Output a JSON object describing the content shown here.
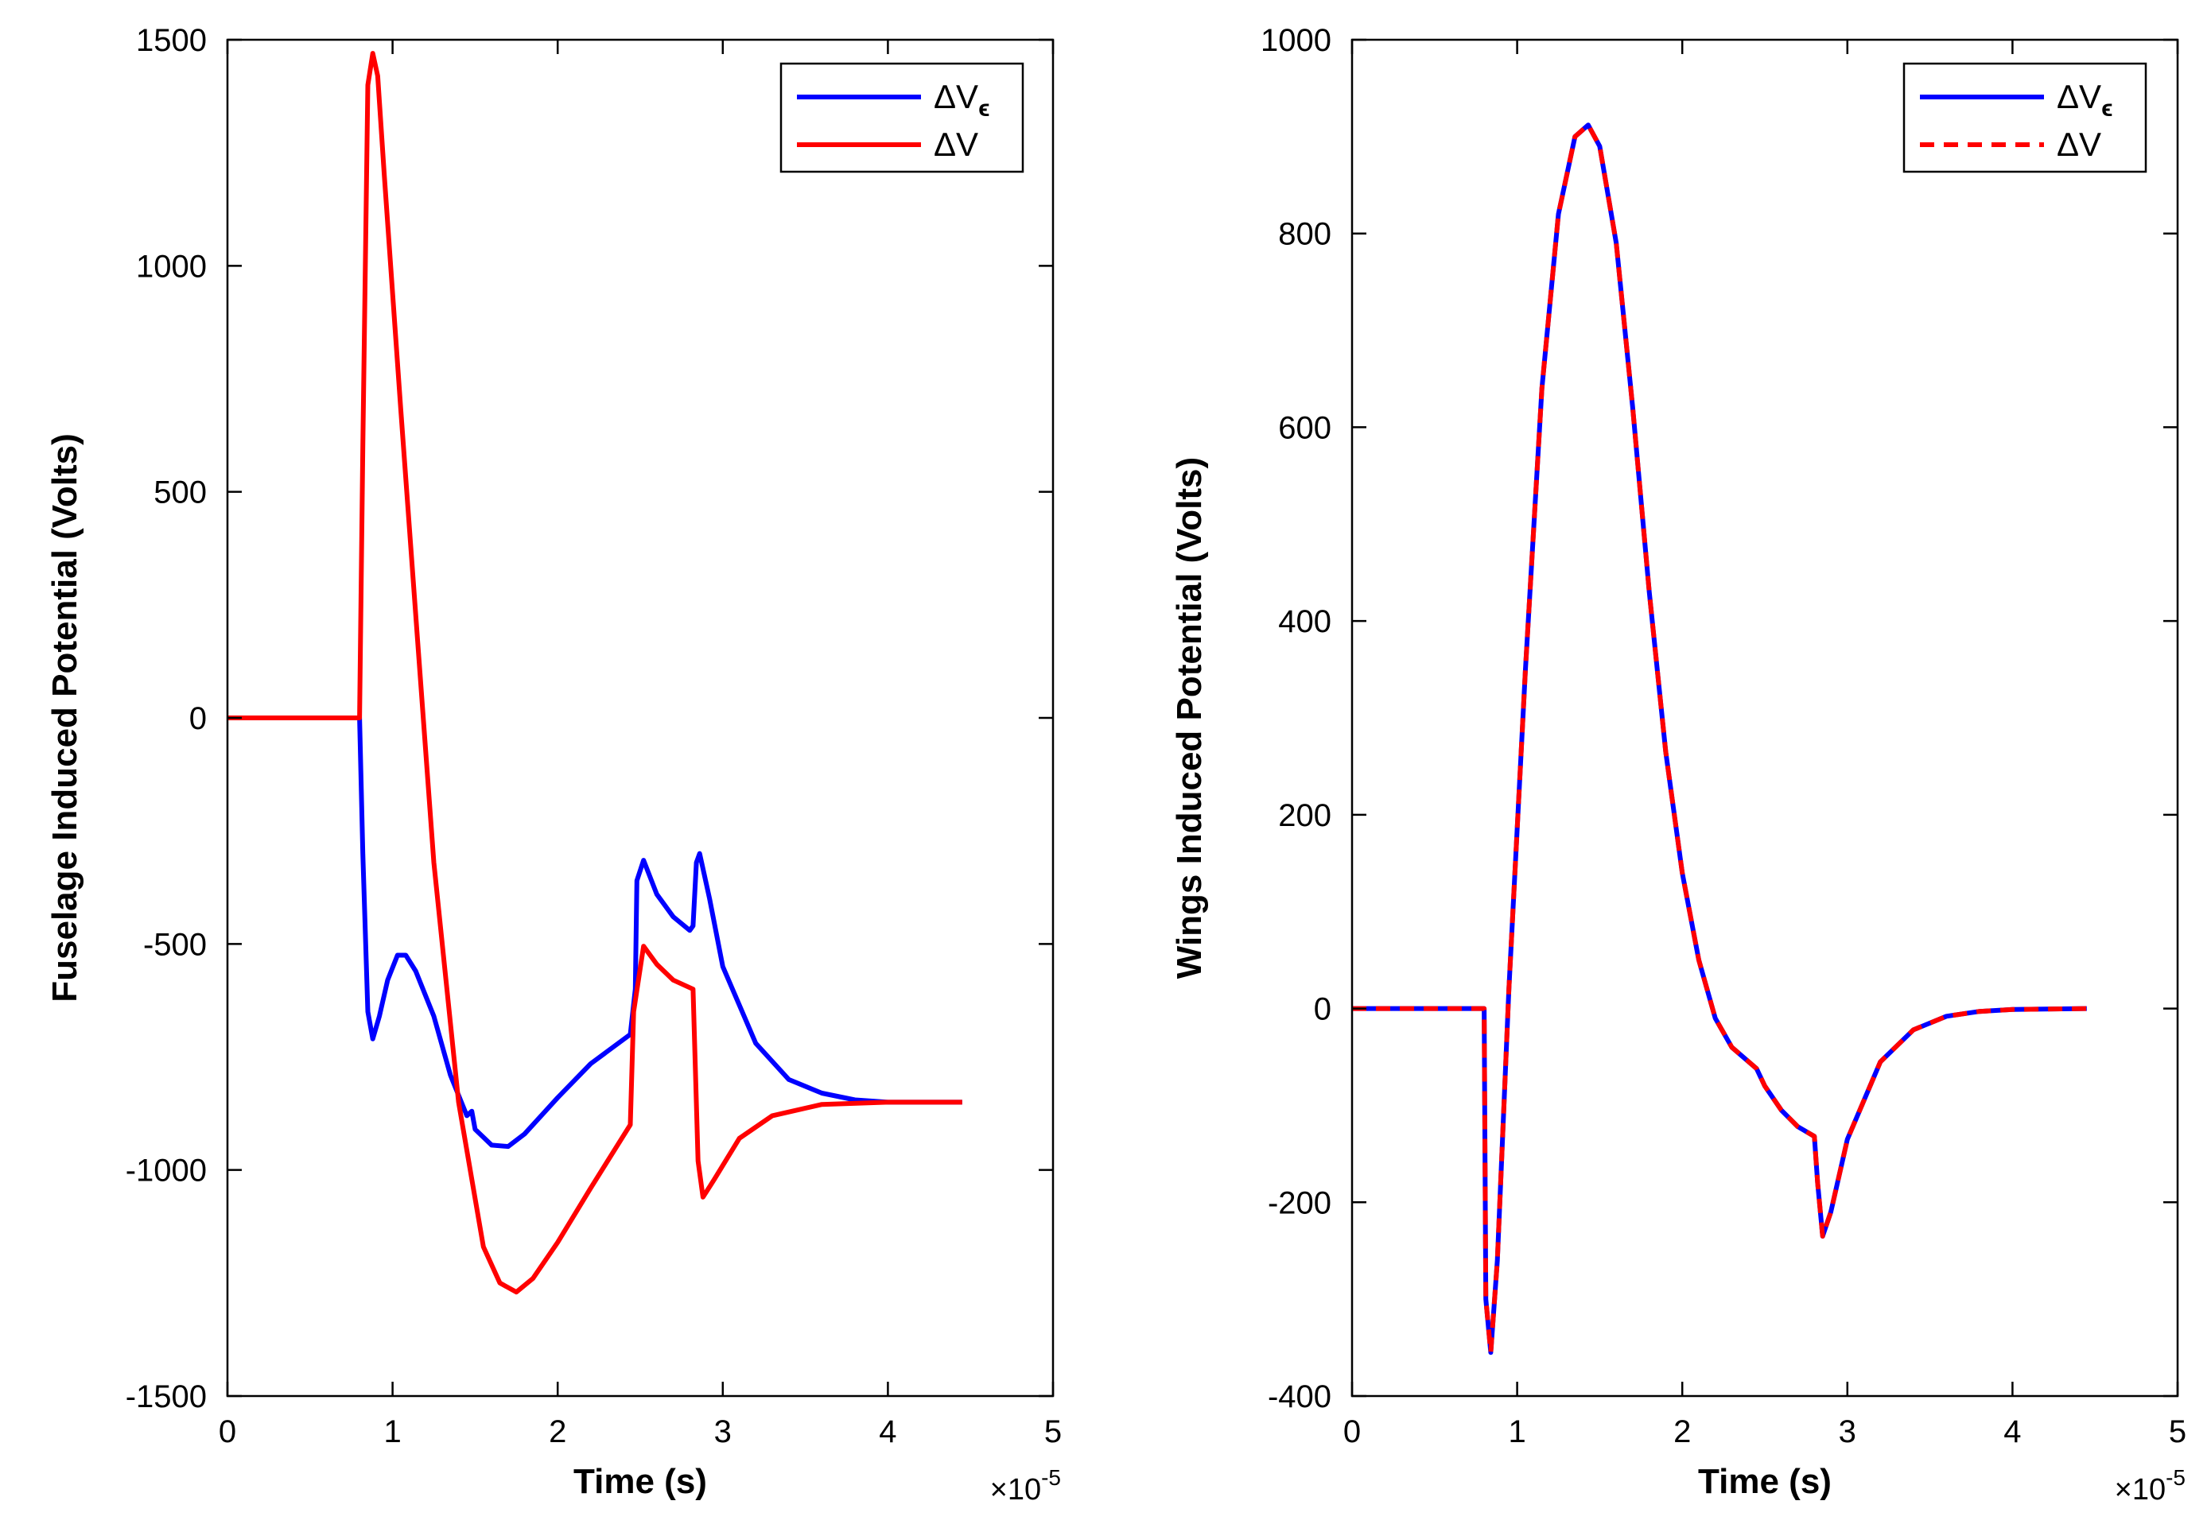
{
  "chart_data": [
    {
      "type": "line",
      "title": "",
      "xlabel": "Time  (s)",
      "ylabel": "Fuselage Induced Potential  (Volts)",
      "x_exponent_label": "×10",
      "x_exponent_power": "-5",
      "xlim": [
        0,
        5
      ],
      "ylim": [
        -1500,
        1500
      ],
      "xticks": [
        "0",
        "1",
        "2",
        "3",
        "4",
        "5"
      ],
      "yticks": [
        "1500",
        "1000",
        "500",
        "0",
        "-500",
        "-1000",
        "-1500"
      ],
      "legend": {
        "position": "top-right",
        "entries": [
          "ΔV",
          "ΔV"
        ],
        "subscripts": [
          "ϵ",
          ""
        ]
      },
      "series": [
        {
          "name": "ΔVϵ",
          "color": "#0000ff",
          "style": "solid",
          "points": [
            [
              0,
              0
            ],
            [
              0.8,
              0
            ],
            [
              0.82,
              -300
            ],
            [
              0.85,
              -650
            ],
            [
              0.88,
              -710
            ],
            [
              0.92,
              -660
            ],
            [
              0.97,
              -580
            ],
            [
              1.03,
              -525
            ],
            [
              1.08,
              -525
            ],
            [
              1.14,
              -560
            ],
            [
              1.25,
              -660
            ],
            [
              1.35,
              -790
            ],
            [
              1.45,
              -880
            ],
            [
              1.48,
              -870
            ],
            [
              1.5,
              -910
            ],
            [
              1.6,
              -945
            ],
            [
              1.7,
              -948
            ],
            [
              1.8,
              -920
            ],
            [
              2.0,
              -840
            ],
            [
              2.2,
              -765
            ],
            [
              2.44,
              -700
            ],
            [
              2.47,
              -600
            ],
            [
              2.48,
              -360
            ],
            [
              2.52,
              -315
            ],
            [
              2.6,
              -390
            ],
            [
              2.7,
              -440
            ],
            [
              2.8,
              -470
            ],
            [
              2.82,
              -460
            ],
            [
              2.84,
              -320
            ],
            [
              2.86,
              -300
            ],
            [
              2.92,
              -400
            ],
            [
              3.0,
              -550
            ],
            [
              3.2,
              -720
            ],
            [
              3.4,
              -800
            ],
            [
              3.6,
              -830
            ],
            [
              3.8,
              -845
            ],
            [
              4.0,
              -850
            ],
            [
              4.45,
              -850
            ]
          ]
        },
        {
          "name": "ΔV",
          "color": "#ff0000",
          "style": "solid",
          "points": [
            [
              0,
              0
            ],
            [
              0.8,
              0
            ],
            [
              0.82,
              600
            ],
            [
              0.85,
              1400
            ],
            [
              0.88,
              1470
            ],
            [
              0.91,
              1420
            ],
            [
              0.95,
              1200
            ],
            [
              1.05,
              680
            ],
            [
              1.15,
              180
            ],
            [
              1.25,
              -320
            ],
            [
              1.4,
              -850
            ],
            [
              1.55,
              -1170
            ],
            [
              1.65,
              -1250
            ],
            [
              1.75,
              -1270
            ],
            [
              1.85,
              -1240
            ],
            [
              2.0,
              -1160
            ],
            [
              2.2,
              -1040
            ],
            [
              2.44,
              -900
            ],
            [
              2.46,
              -650
            ],
            [
              2.52,
              -505
            ],
            [
              2.6,
              -545
            ],
            [
              2.7,
              -580
            ],
            [
              2.82,
              -600
            ],
            [
              2.85,
              -980
            ],
            [
              2.88,
              -1060
            ],
            [
              2.95,
              -1020
            ],
            [
              3.1,
              -930
            ],
            [
              3.3,
              -880
            ],
            [
              3.6,
              -855
            ],
            [
              4.0,
              -850
            ],
            [
              4.45,
              -850
            ]
          ]
        }
      ]
    },
    {
      "type": "line",
      "title": "",
      "xlabel": "Time  (s)",
      "ylabel": "Wings Induced Potential  (Volts)",
      "x_exponent_label": "×10",
      "x_exponent_power": "-5",
      "xlim": [
        0,
        5
      ],
      "ylim": [
        -400,
        1000
      ],
      "xticks": [
        "0",
        "1",
        "2",
        "3",
        "4",
        "5"
      ],
      "yticks": [
        "1000",
        "800",
        "600",
        "400",
        "200",
        "0",
        "-200",
        "-400"
      ],
      "legend": {
        "position": "top-right",
        "entries": [
          "ΔV",
          "ΔV"
        ],
        "subscripts": [
          "ϵ",
          ""
        ]
      },
      "series": [
        {
          "name": "ΔVϵ",
          "color": "#0000ff",
          "style": "solid",
          "points": [
            [
              0,
              0
            ],
            [
              0.8,
              0
            ],
            [
              0.81,
              -300
            ],
            [
              0.84,
              -355
            ],
            [
              0.88,
              -260
            ],
            [
              0.95,
              20
            ],
            [
              1.05,
              350
            ],
            [
              1.15,
              640
            ],
            [
              1.25,
              820
            ],
            [
              1.35,
              900
            ],
            [
              1.43,
              912
            ],
            [
              1.5,
              890
            ],
            [
              1.6,
              790
            ],
            [
              1.7,
              620
            ],
            [
              1.8,
              430
            ],
            [
              1.9,
              265
            ],
            [
              2.0,
              140
            ],
            [
              2.1,
              50
            ],
            [
              2.2,
              -10
            ],
            [
              2.3,
              -40
            ],
            [
              2.45,
              -62
            ],
            [
              2.5,
              -80
            ],
            [
              2.6,
              -105
            ],
            [
              2.7,
              -122
            ],
            [
              2.8,
              -132
            ],
            [
              2.82,
              -180
            ],
            [
              2.85,
              -235
            ],
            [
              2.9,
              -210
            ],
            [
              3.0,
              -135
            ],
            [
              3.2,
              -55
            ],
            [
              3.4,
              -22
            ],
            [
              3.6,
              -8
            ],
            [
              3.8,
              -3
            ],
            [
              4.0,
              -1
            ],
            [
              4.45,
              0
            ]
          ]
        },
        {
          "name": "ΔV",
          "color": "#ff0000",
          "style": "dashed",
          "points": [
            [
              0,
              0
            ],
            [
              0.8,
              0
            ],
            [
              0.81,
              -300
            ],
            [
              0.84,
              -355
            ],
            [
              0.88,
              -260
            ],
            [
              0.95,
              20
            ],
            [
              1.05,
              350
            ],
            [
              1.15,
              640
            ],
            [
              1.25,
              820
            ],
            [
              1.35,
              900
            ],
            [
              1.43,
              912
            ],
            [
              1.5,
              890
            ],
            [
              1.6,
              790
            ],
            [
              1.7,
              620
            ],
            [
              1.8,
              430
            ],
            [
              1.9,
              265
            ],
            [
              2.0,
              140
            ],
            [
              2.1,
              50
            ],
            [
              2.2,
              -10
            ],
            [
              2.3,
              -40
            ],
            [
              2.45,
              -62
            ],
            [
              2.5,
              -80
            ],
            [
              2.6,
              -105
            ],
            [
              2.7,
              -122
            ],
            [
              2.8,
              -132
            ],
            [
              2.82,
              -180
            ],
            [
              2.85,
              -235
            ],
            [
              2.9,
              -210
            ],
            [
              3.0,
              -135
            ],
            [
              3.2,
              -55
            ],
            [
              3.4,
              -22
            ],
            [
              3.6,
              -8
            ],
            [
              3.8,
              -3
            ],
            [
              4.0,
              -1
            ],
            [
              4.45,
              0
            ]
          ]
        }
      ]
    }
  ]
}
